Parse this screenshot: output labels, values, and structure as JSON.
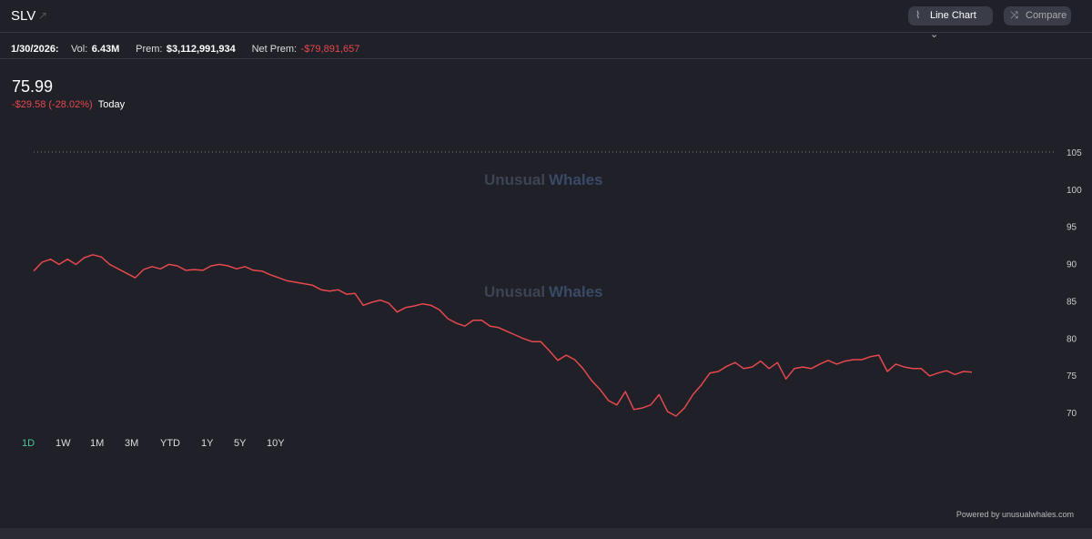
{
  "header": {
    "ticker": "SLV",
    "buttons": [
      "Line Chart",
      "Compare"
    ]
  },
  "stats": {
    "date": "1/30/2026:",
    "vol_label": "Vol:",
    "vol": "6.43M",
    "prem_label": "Prem:",
    "prem": "$3,112,991,934",
    "net_prem_label": "Net Prem:",
    "net_prem": "-$79,891,657"
  },
  "price": {
    "last": "75.99",
    "change": "-$29.58 (-28.02%)",
    "period": "Today"
  },
  "watermark": {
    "word1": "Unusual",
    "word2": "Whales"
  },
  "ranges": [
    "1D",
    "1W",
    "1M",
    "3M",
    "YTD",
    "1Y",
    "5Y",
    "10Y"
  ],
  "footer": "Powered by unusualwhales.com",
  "chart_data": {
    "type": "line",
    "series": [
      {
        "color": "#e5484d",
        "values": [
          89.0,
          90.2,
          90.6,
          89.9,
          90.6,
          89.9,
          90.8,
          91.2,
          90.9,
          89.9,
          89.3,
          88.7,
          88.1,
          89.2,
          89.6,
          89.3,
          89.9,
          89.7,
          89.1,
          89.2,
          89.1,
          89.7,
          89.9,
          89.7,
          89.3,
          89.6,
          89.1,
          89.0,
          88.5,
          88.1,
          87.7,
          87.5,
          87.3,
          87.1,
          86.5,
          86.3,
          86.5,
          85.9,
          86.0,
          84.4,
          84.8,
          85.1,
          84.7,
          83.5,
          84.1,
          84.3,
          84.6,
          84.4,
          83.8,
          82.6,
          82.0,
          81.6,
          82.4,
          82.4,
          81.6,
          81.4,
          80.9,
          80.4,
          79.9,
          79.5,
          79.5,
          78.3,
          77.0,
          77.7,
          77.1,
          75.9,
          74.3,
          73.1,
          71.6,
          71.0,
          72.8,
          70.4,
          70.6,
          71.0,
          72.4,
          70.1,
          69.5,
          70.6,
          72.4,
          73.7,
          75.3,
          75.5,
          76.2,
          76.7,
          75.9,
          76.1,
          76.9,
          75.9,
          76.7,
          74.5,
          75.9,
          76.1,
          75.9,
          76.5,
          77.0,
          76.5,
          76.9,
          77.1,
          77.1,
          77.5,
          77.7,
          75.5,
          76.5,
          76.1,
          75.9,
          75.9,
          74.9,
          75.3,
          75.6,
          75.1,
          75.5,
          75.4
        ]
      }
    ],
    "ylim": [
      68,
      108
    ],
    "yticks": [
      70,
      75,
      80,
      85,
      90,
      95,
      100,
      105
    ]
  }
}
